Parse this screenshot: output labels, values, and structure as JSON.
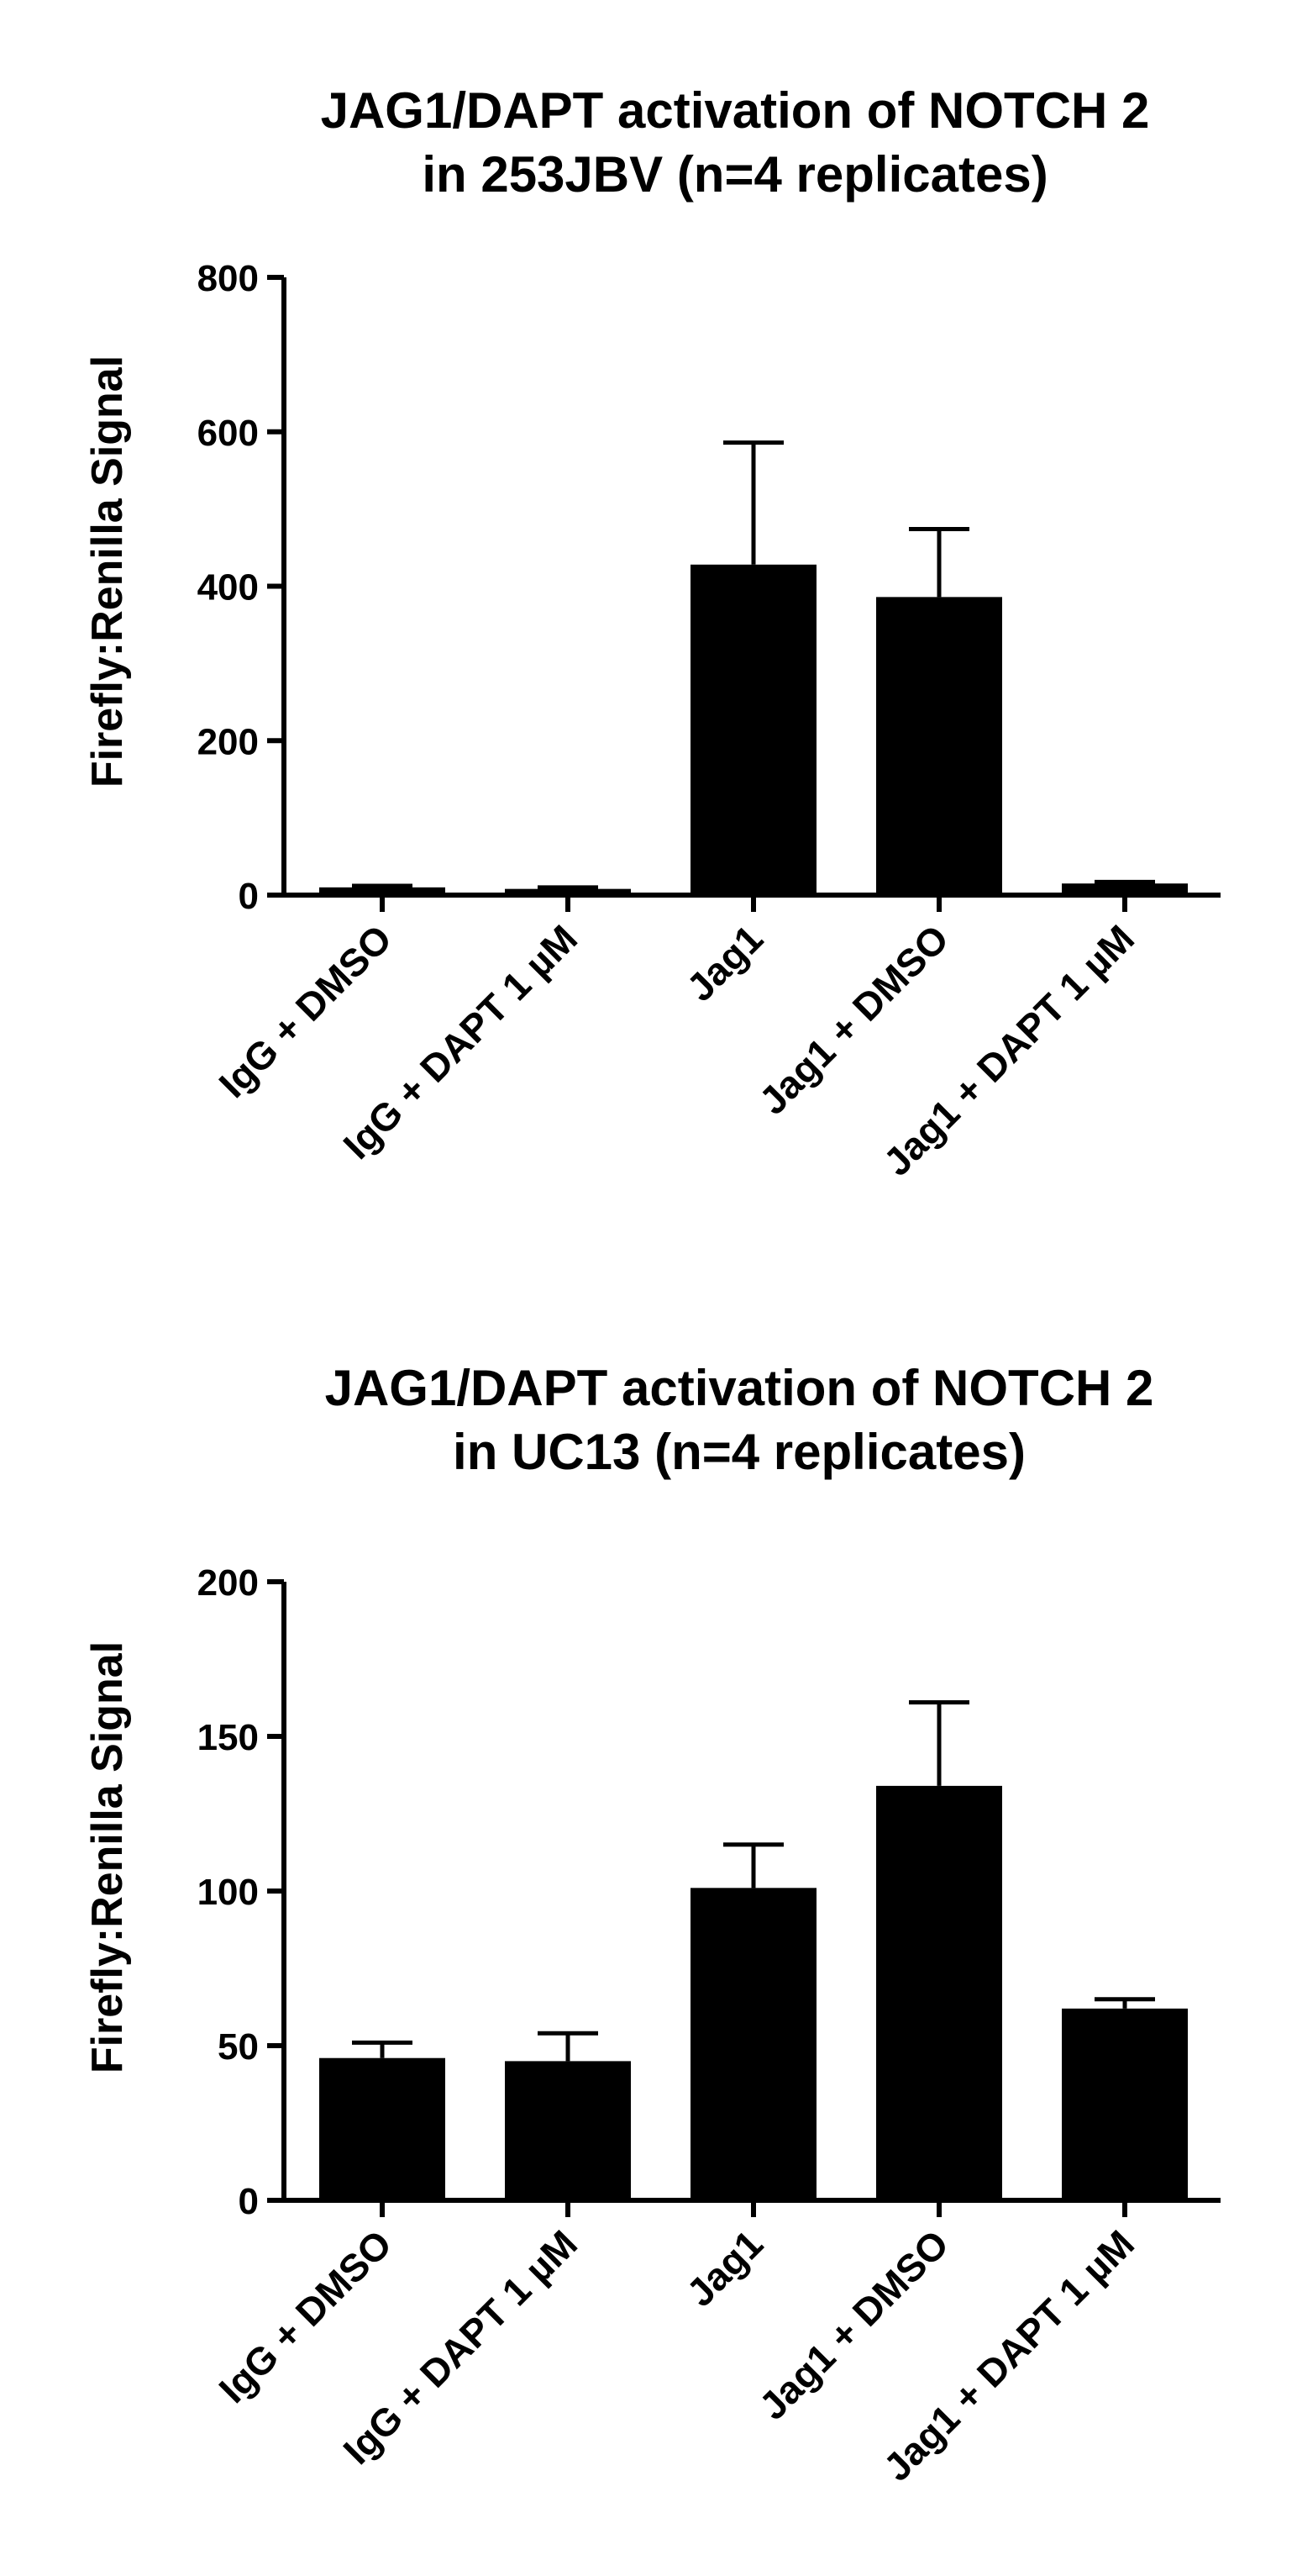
{
  "chart_data": [
    {
      "type": "bar",
      "title": [
        "JAG1/DAPT activation of NOTCH 2",
        "in 253JBV (n=4 replicates)"
      ],
      "ylabel": "Firefly:Renilla Signal",
      "xlabel": "",
      "ylim": [
        0,
        800
      ],
      "yticks": [
        0,
        200,
        400,
        600,
        800
      ],
      "categories": [
        "IgG + DMSO",
        "IgG + DAPT 1 µM",
        "Jag1",
        "Jag1 + DMSO",
        "Jag1 + DAPT 1 µM"
      ],
      "values": [
        10,
        8,
        428,
        386,
        15
      ],
      "errors": [
        2,
        2,
        158,
        88,
        2
      ],
      "color": "#000000",
      "grid": false
    },
    {
      "type": "bar",
      "title": [
        "JAG1/DAPT activation of NOTCH 2",
        "in UC13 (n=4 replicates)"
      ],
      "ylabel": "Firefly:Renilla Signal",
      "xlabel": "",
      "ylim": [
        0,
        200
      ],
      "yticks": [
        0,
        50,
        100,
        150,
        200
      ],
      "categories": [
        "IgG + DMSO",
        "IgG + DAPT 1 µM",
        "Jag1",
        "Jag1 + DMSO",
        "Jag1 + DAPT 1 µM"
      ],
      "values": [
        46,
        45,
        101,
        134,
        62
      ],
      "errors": [
        5,
        9,
        14,
        27,
        3
      ],
      "color": "#000000",
      "grid": false
    }
  ]
}
